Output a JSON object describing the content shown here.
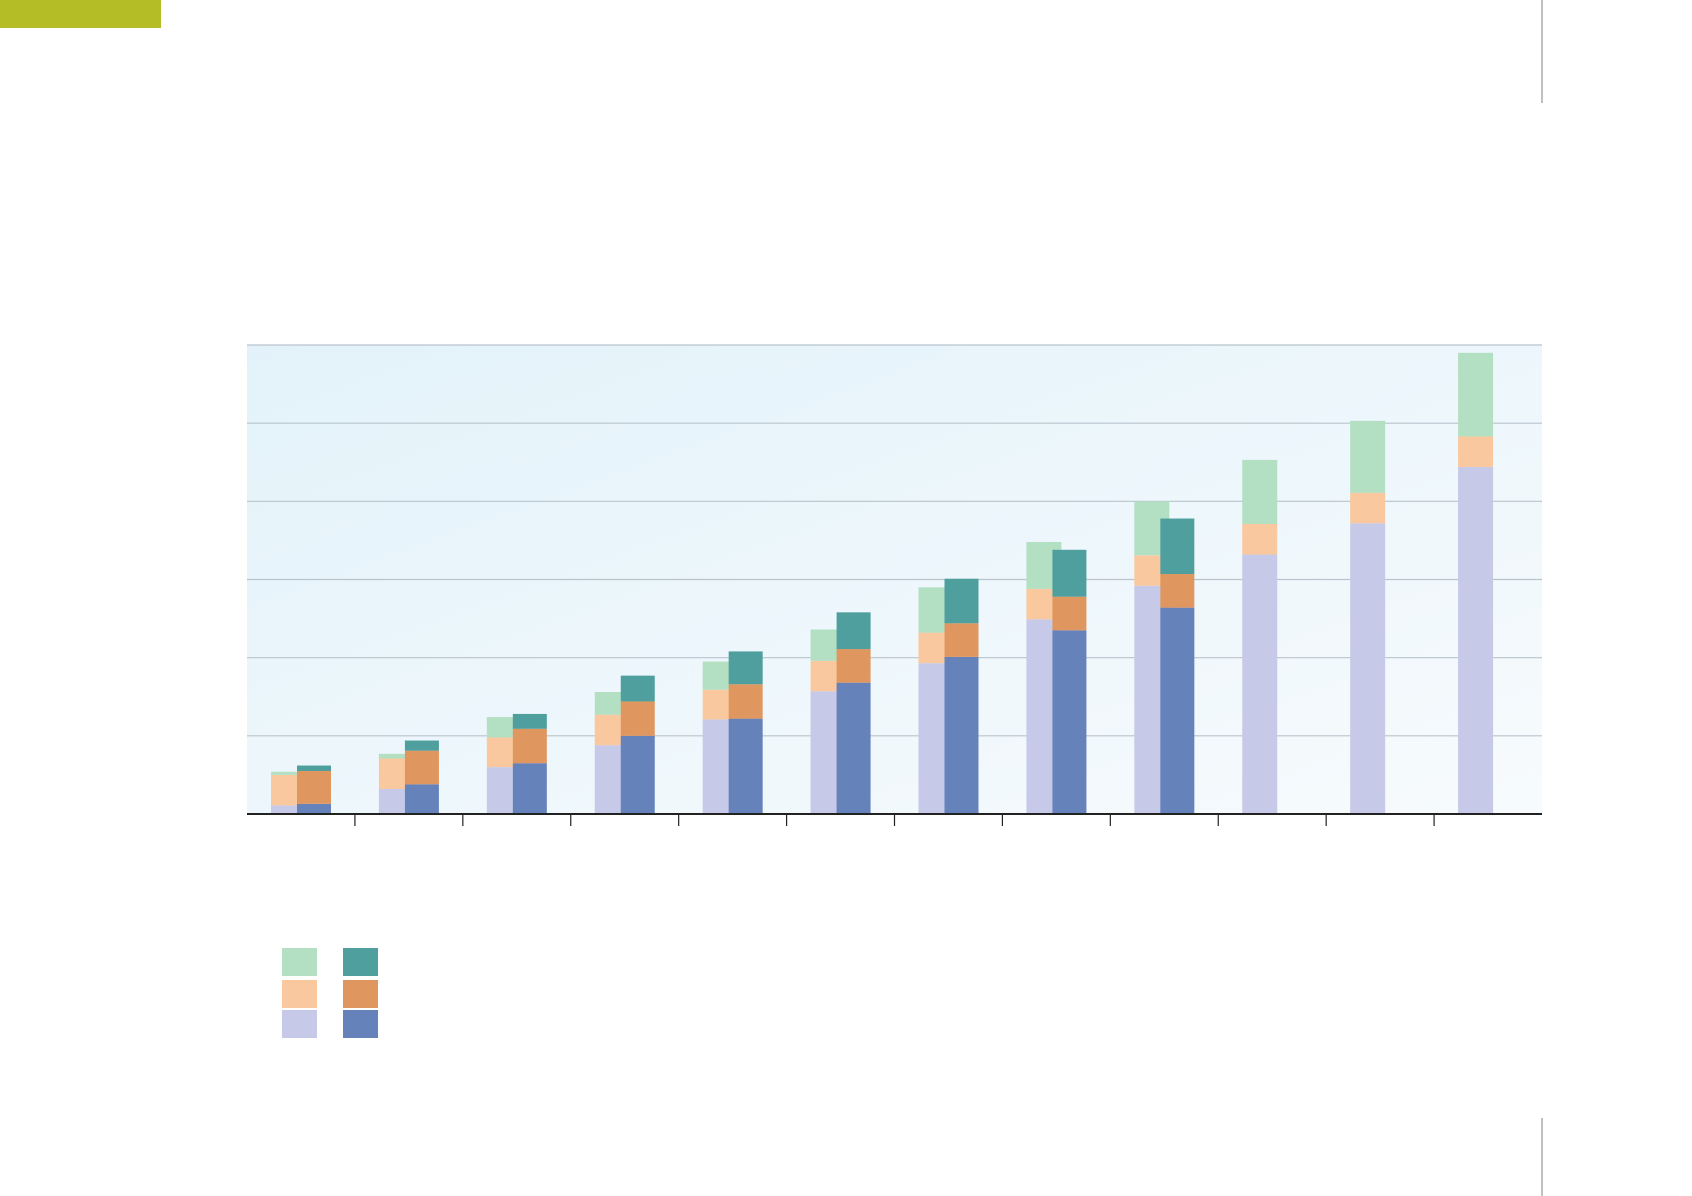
{
  "chart_data": {
    "type": "stacked-bar",
    "categories": [
      null,
      null,
      null,
      null,
      null,
      null,
      null,
      null,
      null,
      null,
      null,
      null
    ],
    "ylim": [
      0,
      6
    ],
    "yticks": [
      0,
      1,
      2,
      3,
      4,
      5,
      6
    ],
    "grid": true,
    "series": [
      {
        "stack": 0,
        "color": "#c6cae8",
        "values": [
          0.11,
          0.32,
          0.6,
          0.88,
          1.21,
          1.57,
          1.93,
          2.49,
          2.92,
          3.32,
          3.72,
          4.44
        ]
      },
      {
        "stack": 0,
        "color": "#fac89e",
        "values": [
          0.39,
          0.39,
          0.38,
          0.39,
          0.38,
          0.39,
          0.39,
          0.39,
          0.39,
          0.39,
          0.39,
          0.39
        ]
      },
      {
        "stack": 0,
        "color": "#b3dfc3",
        "values": [
          0.04,
          0.06,
          0.26,
          0.29,
          0.36,
          0.4,
          0.58,
          0.6,
          0.69,
          0.82,
          0.92,
          1.07
        ]
      },
      {
        "stack": 1,
        "color": "#6682bb",
        "values": [
          0.13,
          0.38,
          0.65,
          1.0,
          1.22,
          1.68,
          2.01,
          2.35,
          2.64,
          null,
          null,
          null
        ]
      },
      {
        "stack": 1,
        "color": "#e0975f",
        "values": [
          0.42,
          0.43,
          0.44,
          0.44,
          0.44,
          0.43,
          0.43,
          0.43,
          0.43,
          null,
          null,
          null
        ]
      },
      {
        "stack": 1,
        "color": "#4f9f9f",
        "values": [
          0.07,
          0.13,
          0.19,
          0.33,
          0.42,
          0.47,
          0.57,
          0.6,
          0.71,
          null,
          null,
          null
        ]
      }
    ]
  }
}
